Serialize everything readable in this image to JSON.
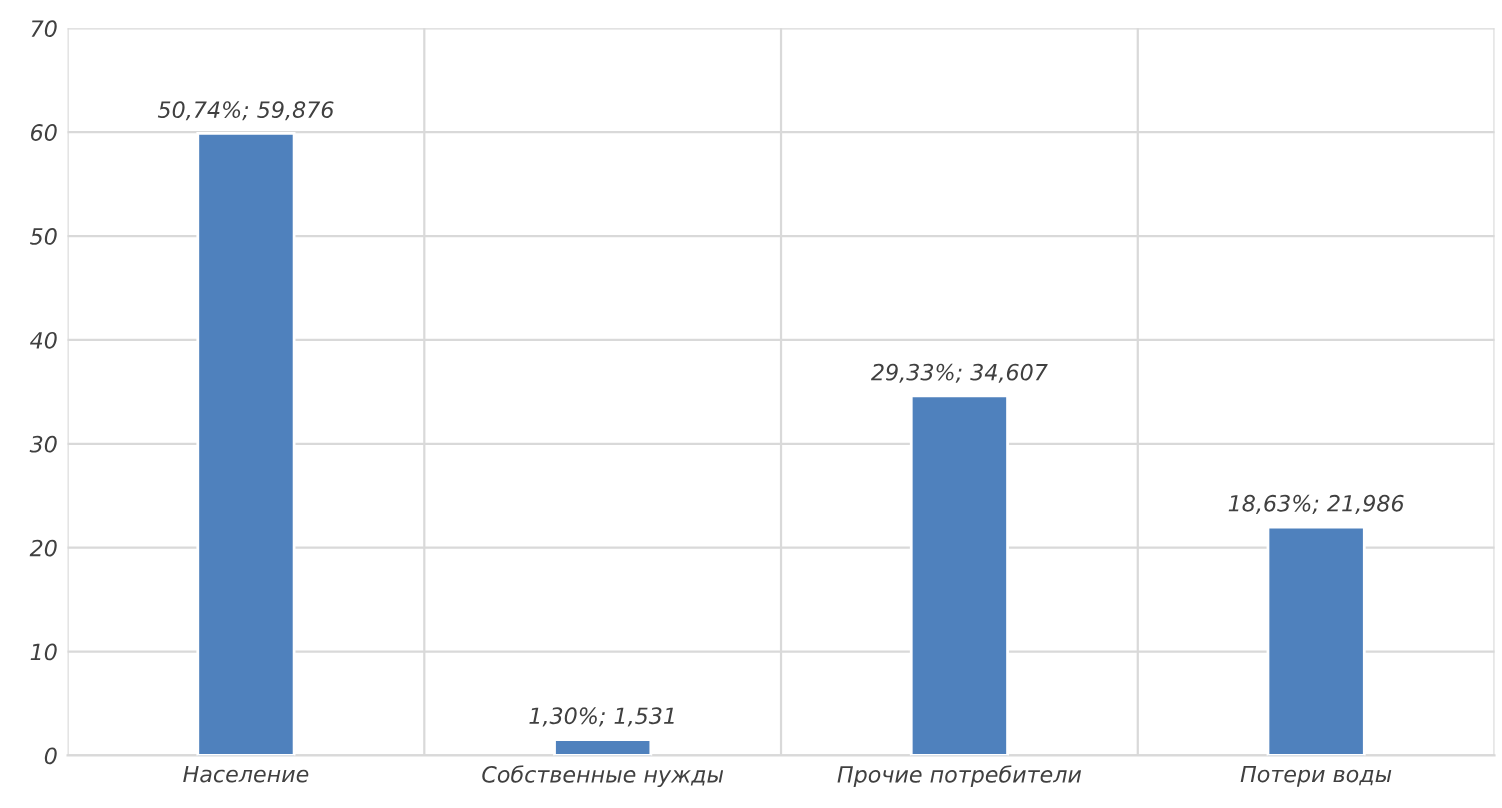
{
  "chart_data": {
    "type": "bar",
    "categories": [
      "Население",
      "Собственные нужды",
      "Прочие потребители",
      "Потери воды"
    ],
    "values": [
      59.876,
      1.531,
      34.607,
      21.986
    ],
    "value_labels": [
      "50,74%; 59,876",
      "1,30%; 1,531",
      "29,33%; 34,607",
      "18,63%; 21,986"
    ],
    "color": "#4f81bd",
    "ylim": [
      0,
      70
    ],
    "yticks": [
      0,
      10,
      20,
      30,
      40,
      50,
      60,
      70
    ],
    "grid": true,
    "legend": false
  }
}
